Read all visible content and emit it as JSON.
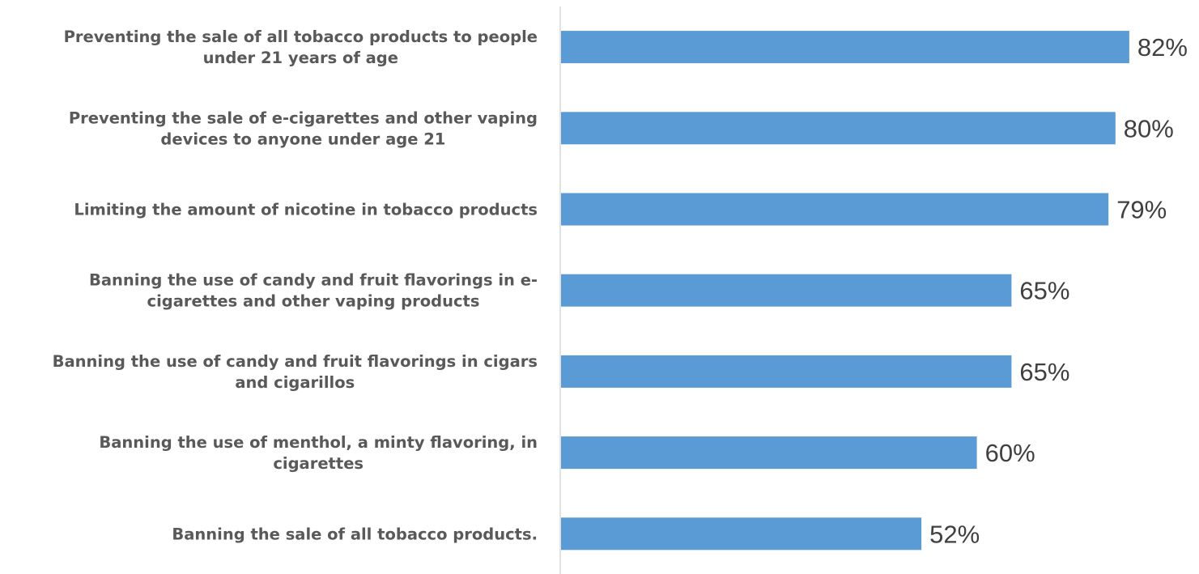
{
  "chart_data": {
    "type": "bar",
    "orientation": "horizontal",
    "categories": [
      [
        "Preventing the sale of all tobacco products to people",
        "under 21 years of age"
      ],
      [
        "Preventing the sale of e-cigarettes and other vaping",
        "devices to anyone under age 21"
      ],
      [
        "Limiting the amount of nicotine in tobacco products"
      ],
      [
        "Banning the use of candy and fruit flavorings in e-",
        "cigarettes and other vaping products"
      ],
      [
        "Banning the use of candy and fruit flavorings in cigars",
        "and cigarillos"
      ],
      [
        "Banning the use of menthol, a minty flavoring, in",
        "cigarettes"
      ],
      [
        "Banning the sale of all tobacco products."
      ]
    ],
    "values": [
      82,
      80,
      79,
      65,
      65,
      60,
      52
    ],
    "data_labels": [
      "82%",
      "80%",
      "79%",
      "65%",
      "65%",
      "60%",
      "52%"
    ],
    "xlim": [
      0,
      90
    ],
    "bar_color": "#5B9BD5",
    "axis_color": "#D9D9D9",
    "grid": false,
    "legend": "none"
  }
}
